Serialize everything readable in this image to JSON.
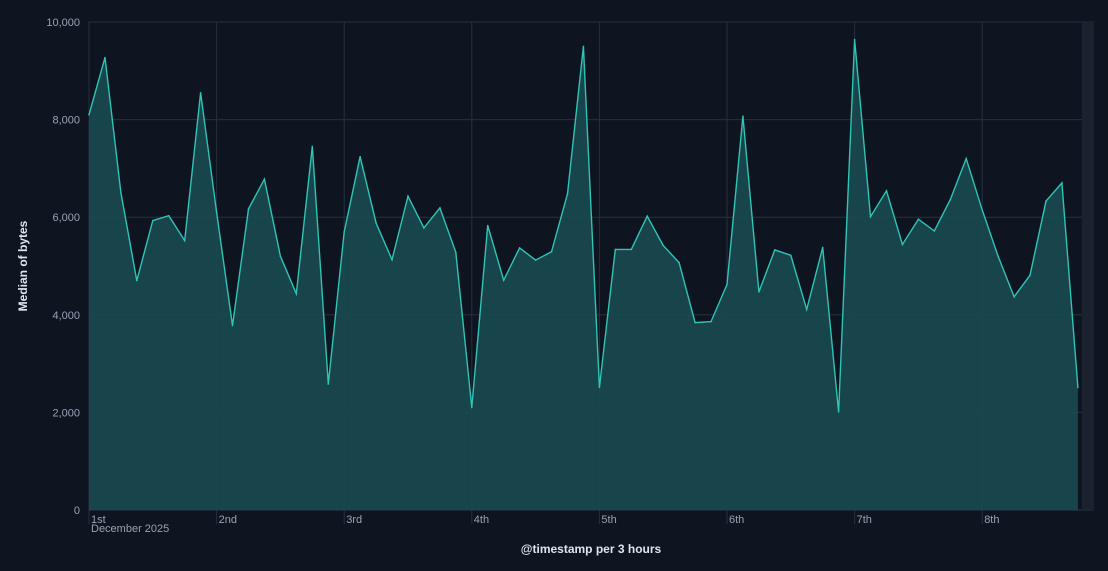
{
  "chart_data": {
    "type": "area",
    "xlabel": "@timestamp per 3 hours",
    "ylabel": "Median of bytes",
    "ylim": [
      0,
      10000
    ],
    "yticks": [
      "0",
      "2,000",
      "4,000",
      "6,000",
      "8,000",
      "10,000"
    ],
    "ytick_values": [
      0,
      2000,
      4000,
      6000,
      8000,
      10000
    ],
    "xticks": [
      "1st",
      "2nd",
      "3rd",
      "4th",
      "5th",
      "6th",
      "7th",
      "8th"
    ],
    "xtick_sublabel": "December 2025",
    "interval_hours": 3,
    "grid": true,
    "colors": {
      "line": "#2ec4b6",
      "fill": "#1a4a50",
      "background": "#0f1520",
      "grid": "#253040",
      "partial_bucket": "#1a2230"
    },
    "values": [
      8100,
      9270,
      6500,
      4700,
      5930,
      6030,
      5520,
      8550,
      6100,
      3780,
      6170,
      6780,
      5200,
      4430,
      7450,
      2580,
      5700,
      7240,
      5880,
      5130,
      6430,
      5780,
      6190,
      5280,
      2100,
      5830,
      4710,
      5370,
      5120,
      5290,
      6480,
      9500,
      2510,
      5340,
      5340,
      6020,
      5420,
      5070,
      3840,
      3860,
      4620,
      8070,
      4470,
      5330,
      5220,
      4110,
      5380,
      2010,
      9640,
      6010,
      6540,
      5440,
      5960,
      5720,
      6360,
      7200,
      6150,
      5200,
      4370,
      4810,
      6330,
      6700,
      2510
    ]
  }
}
